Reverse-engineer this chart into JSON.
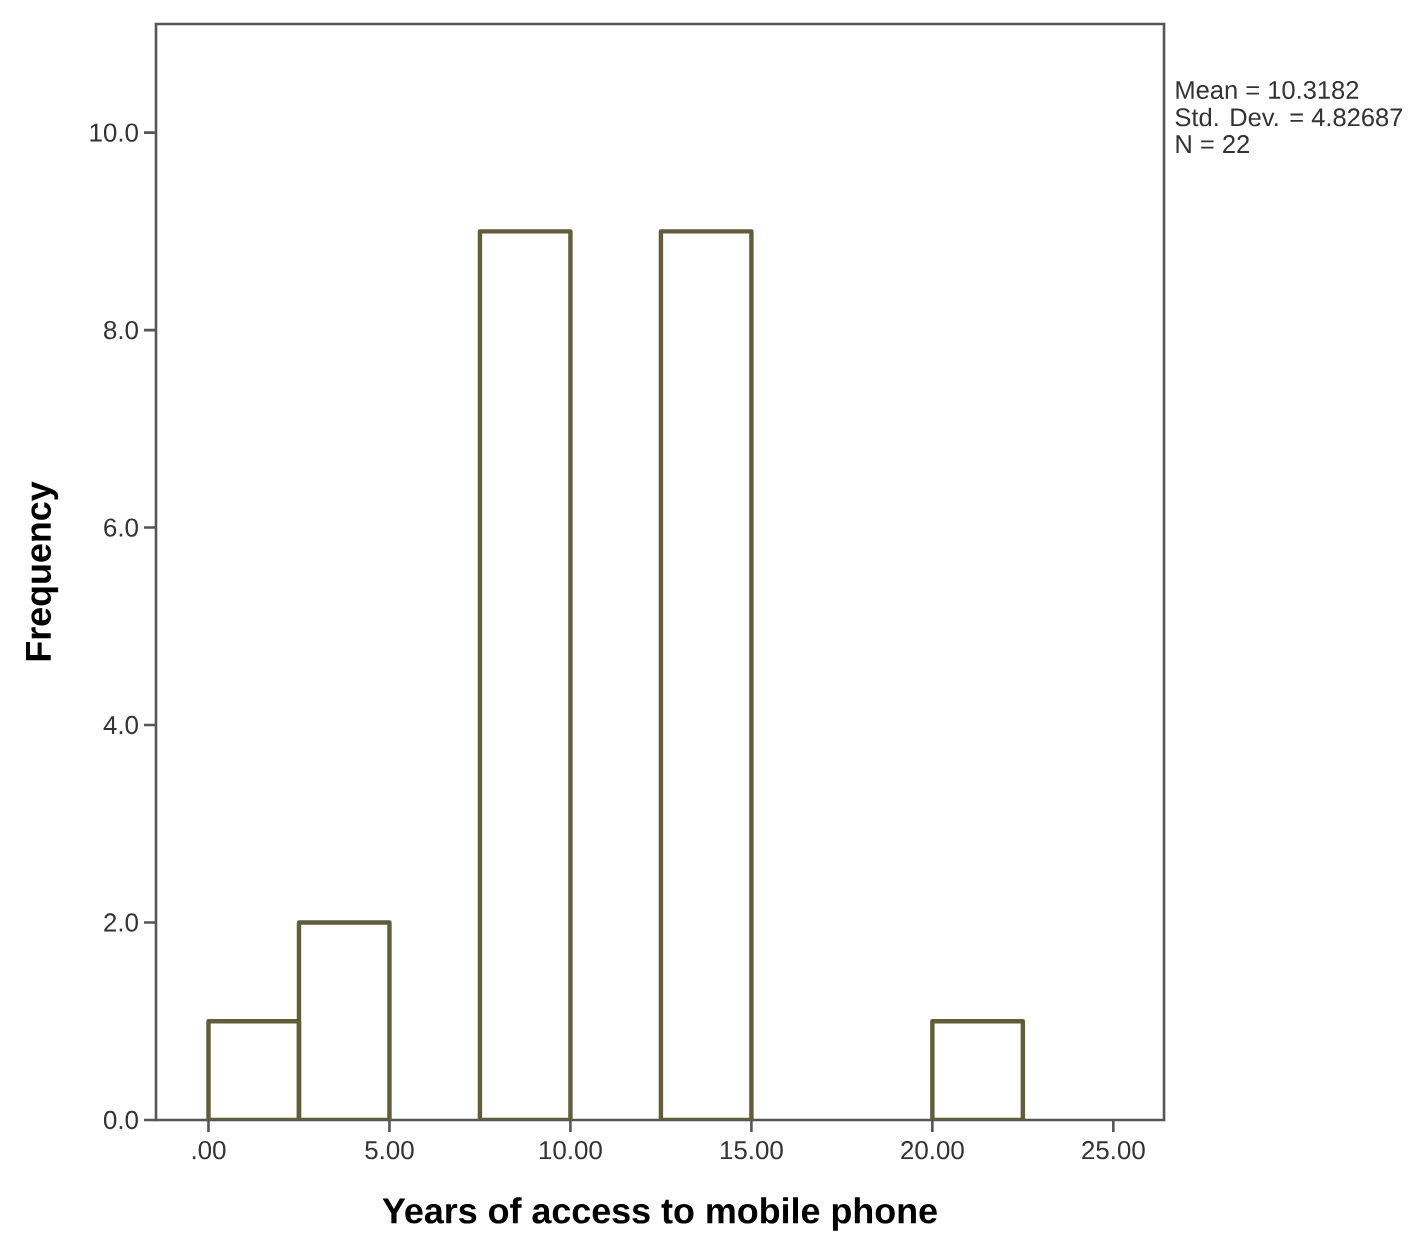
{
  "chart_data": {
    "type": "histogram",
    "xlabel": "Years of access to mobile phone",
    "ylabel": "Frequency",
    "bins": [
      0,
      2.5,
      5,
      7.5,
      10,
      12.5,
      15,
      17.5,
      20,
      22.5
    ],
    "values": [
      1,
      2,
      0,
      9,
      0,
      9,
      0,
      0,
      1
    ],
    "color": "#5f5d3a",
    "xlim": [
      -1.45,
      26.4
    ],
    "ylim": [
      0,
      11.1
    ],
    "xticks": [
      {
        "value": 0,
        "label": ".00"
      },
      {
        "value": 5,
        "label": "5.00"
      },
      {
        "value": 10,
        "label": "10.00"
      },
      {
        "value": 15,
        "label": "15.00"
      },
      {
        "value": 20,
        "label": "20.00"
      },
      {
        "value": 25,
        "label": "25.00"
      }
    ],
    "yticks": [
      {
        "value": 0,
        "label": "0.0"
      },
      {
        "value": 2,
        "label": "2.0"
      },
      {
        "value": 4,
        "label": "4.0"
      },
      {
        "value": 6,
        "label": "6.0"
      },
      {
        "value": 8,
        "label": "8.0"
      },
      {
        "value": 10,
        "label": "10.0"
      }
    ],
    "annotations": [
      "Mean = 10.3182",
      "Std. Dev. = 4.82687",
      "N = 22"
    ]
  }
}
